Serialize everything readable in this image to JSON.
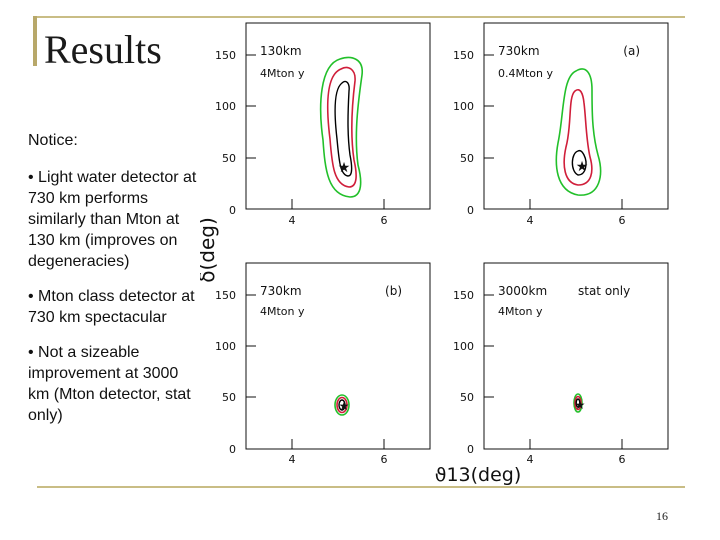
{
  "slide": {
    "title": "Results",
    "page_number": "16"
  },
  "notes": {
    "heading": "Notice:",
    "bullets": [
      "• Light water detector at 730 km performs similarly than Mton at 130 km (improves on degeneracies)",
      "• Mton class detector at 730 km spectacular",
      "• Not a sizeable improvement at 3000 km (Mton detector, stat only)"
    ]
  },
  "figure": {
    "ylabel": "δ(deg)",
    "xlabel": "ϑ13(deg)",
    "colors": {
      "outer": "#22c02a",
      "middle": "#d01e3a",
      "inner": "#000000"
    },
    "panels": [
      {
        "labels": [
          "130km",
          "4Mton y"
        ],
        "tag": "",
        "yticks": [
          "150",
          "100",
          "50",
          "0"
        ],
        "xticks": [
          "4",
          "6"
        ]
      },
      {
        "labels": [
          "730km",
          "0.4Mton y"
        ],
        "tag": "(a)",
        "yticks": [
          "150",
          "100",
          "50",
          "0"
        ],
        "xticks": [
          "4",
          "6"
        ]
      },
      {
        "labels": [
          "730km",
          "4Mton y"
        ],
        "tag": "(b)",
        "yticks": [
          "150",
          "100",
          "50",
          "0"
        ],
        "xticks": [
          "4",
          "6"
        ]
      },
      {
        "labels": [
          "3000km",
          "4Mton y"
        ],
        "tag": "stat only",
        "yticks": [
          "150",
          "100",
          "50",
          "0"
        ],
        "xticks": [
          "4",
          "6"
        ]
      }
    ]
  }
}
